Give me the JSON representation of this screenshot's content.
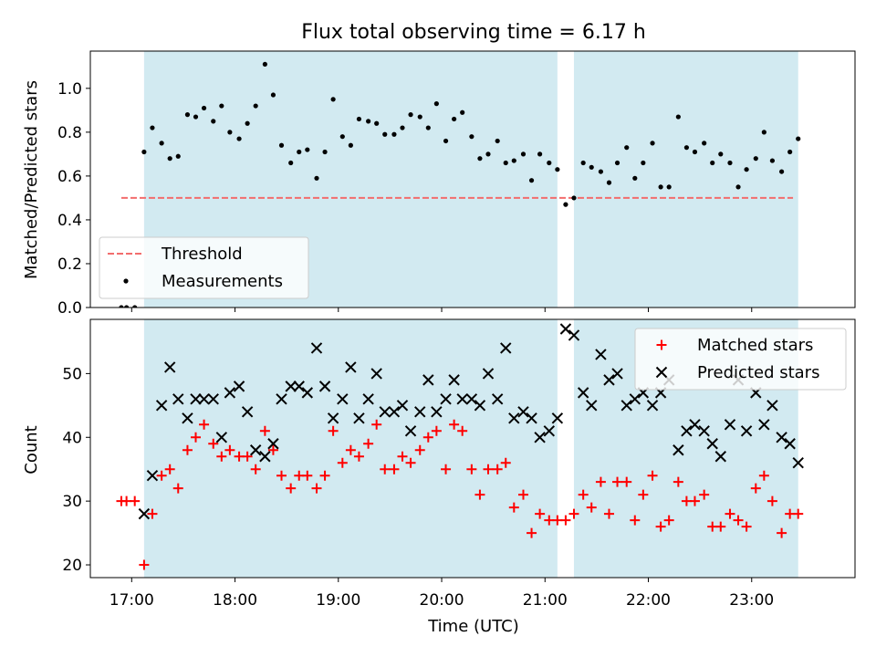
{
  "chart_data": {
    "title": "Flux total observing time = 6.17 h",
    "xlabel": "Time (UTC)",
    "xlim": [
      16.6,
      24.0
    ],
    "xticks": [
      17,
      18,
      19,
      20,
      21,
      22,
      23
    ],
    "xtick_labels": [
      "17:00",
      "18:00",
      "19:00",
      "20:00",
      "21:00",
      "22:00",
      "23:00"
    ],
    "shaded_intervals": [
      [
        17.12,
        21.12
      ],
      [
        21.28,
        23.45
      ]
    ],
    "shade_color": "#add8e6",
    "panels": [
      {
        "type": "scatter",
        "ylabel": "Matched/Predicted stars",
        "ylim": [
          0.0,
          1.17
        ],
        "yticks": [
          0.0,
          0.2,
          0.4,
          0.6,
          0.8,
          1.0
        ],
        "ytick_labels": [
          "0.0",
          "0.2",
          "0.4",
          "0.6",
          "0.8",
          "1.0"
        ],
        "legend_position": "lower-left",
        "threshold": {
          "name": "Threshold",
          "value": 0.5,
          "x_range": [
            16.9,
            23.4
          ],
          "color": "#f26d6d",
          "style": "dashed"
        },
        "series": [
          {
            "name": "Measurements",
            "marker": "dot",
            "color": "#000000",
            "points": [
              [
                16.9,
                0.0
              ],
              [
                16.95,
                0.0
              ],
              [
                17.03,
                0.0
              ],
              [
                17.12,
                0.71
              ],
              [
                17.2,
                0.82
              ],
              [
                17.29,
                0.75
              ],
              [
                17.37,
                0.68
              ],
              [
                17.45,
                0.69
              ],
              [
                17.54,
                0.88
              ],
              [
                17.62,
                0.87
              ],
              [
                17.7,
                0.91
              ],
              [
                17.79,
                0.85
              ],
              [
                17.87,
                0.92
              ],
              [
                17.95,
                0.8
              ],
              [
                18.04,
                0.77
              ],
              [
                18.12,
                0.84
              ],
              [
                18.2,
                0.92
              ],
              [
                18.29,
                1.11
              ],
              [
                18.37,
                0.97
              ],
              [
                18.45,
                0.74
              ],
              [
                18.54,
                0.66
              ],
              [
                18.62,
                0.71
              ],
              [
                18.7,
                0.72
              ],
              [
                18.79,
                0.59
              ],
              [
                18.87,
                0.71
              ],
              [
                18.95,
                0.95
              ],
              [
                19.04,
                0.78
              ],
              [
                19.12,
                0.74
              ],
              [
                19.2,
                0.86
              ],
              [
                19.29,
                0.85
              ],
              [
                19.37,
                0.84
              ],
              [
                19.45,
                0.79
              ],
              [
                19.54,
                0.79
              ],
              [
                19.62,
                0.82
              ],
              [
                19.7,
                0.88
              ],
              [
                19.79,
                0.87
              ],
              [
                19.87,
                0.82
              ],
              [
                19.95,
                0.93
              ],
              [
                20.04,
                0.76
              ],
              [
                20.12,
                0.86
              ],
              [
                20.2,
                0.89
              ],
              [
                20.29,
                0.78
              ],
              [
                20.37,
                0.68
              ],
              [
                20.45,
                0.7
              ],
              [
                20.54,
                0.76
              ],
              [
                20.62,
                0.66
              ],
              [
                20.7,
                0.67
              ],
              [
                20.79,
                0.7
              ],
              [
                20.87,
                0.58
              ],
              [
                20.95,
                0.7
              ],
              [
                21.04,
                0.66
              ],
              [
                21.12,
                0.63
              ],
              [
                21.2,
                0.47
              ],
              [
                21.28,
                0.5
              ],
              [
                21.37,
                0.66
              ],
              [
                21.45,
                0.64
              ],
              [
                21.54,
                0.62
              ],
              [
                21.62,
                0.57
              ],
              [
                21.7,
                0.66
              ],
              [
                21.79,
                0.73
              ],
              [
                21.87,
                0.59
              ],
              [
                21.95,
                0.66
              ],
              [
                22.04,
                0.75
              ],
              [
                22.12,
                0.55
              ],
              [
                22.2,
                0.55
              ],
              [
                22.29,
                0.87
              ],
              [
                22.37,
                0.73
              ],
              [
                22.45,
                0.71
              ],
              [
                22.54,
                0.75
              ],
              [
                22.62,
                0.66
              ],
              [
                22.7,
                0.7
              ],
              [
                22.79,
                0.66
              ],
              [
                22.87,
                0.55
              ],
              [
                22.95,
                0.63
              ],
              [
                23.04,
                0.68
              ],
              [
                23.12,
                0.8
              ],
              [
                23.2,
                0.67
              ],
              [
                23.29,
                0.62
              ],
              [
                23.37,
                0.71
              ],
              [
                23.45,
                0.77
              ]
            ]
          }
        ]
      },
      {
        "type": "scatter",
        "ylabel": "Count",
        "ylim": [
          18.0,
          58.5
        ],
        "yticks": [
          20,
          30,
          40,
          50
        ],
        "ytick_labels": [
          "20",
          "30",
          "40",
          "50"
        ],
        "legend_position": "upper-right",
        "series": [
          {
            "name": "Matched stars",
            "marker": "plus",
            "color": "#ff0000",
            "points": [
              [
                16.9,
                30
              ],
              [
                16.95,
                30
              ],
              [
                17.03,
                30
              ],
              [
                17.12,
                20
              ],
              [
                17.2,
                28
              ],
              [
                17.29,
                34
              ],
              [
                17.37,
                35
              ],
              [
                17.45,
                32
              ],
              [
                17.54,
                38
              ],
              [
                17.62,
                40
              ],
              [
                17.7,
                42
              ],
              [
                17.79,
                39
              ],
              [
                17.87,
                37
              ],
              [
                17.95,
                38
              ],
              [
                18.04,
                37
              ],
              [
                18.12,
                37
              ],
              [
                18.2,
                35
              ],
              [
                18.29,
                41
              ],
              [
                18.37,
                38
              ],
              [
                18.45,
                34
              ],
              [
                18.54,
                32
              ],
              [
                18.62,
                34
              ],
              [
                18.7,
                34
              ],
              [
                18.79,
                32
              ],
              [
                18.87,
                34
              ],
              [
                18.95,
                41
              ],
              [
                19.04,
                36
              ],
              [
                19.12,
                38
              ],
              [
                19.2,
                37
              ],
              [
                19.29,
                39
              ],
              [
                19.37,
                42
              ],
              [
                19.45,
                35
              ],
              [
                19.54,
                35
              ],
              [
                19.62,
                37
              ],
              [
                19.7,
                36
              ],
              [
                19.79,
                38
              ],
              [
                19.87,
                40
              ],
              [
                19.95,
                41
              ],
              [
                20.04,
                35
              ],
              [
                20.12,
                42
              ],
              [
                20.2,
                41
              ],
              [
                20.29,
                35
              ],
              [
                20.37,
                31
              ],
              [
                20.45,
                35
              ],
              [
                20.54,
                35
              ],
              [
                20.62,
                36
              ],
              [
                20.7,
                29
              ],
              [
                20.79,
                31
              ],
              [
                20.87,
                25
              ],
              [
                20.95,
                28
              ],
              [
                21.04,
                27
              ],
              [
                21.12,
                27
              ],
              [
                21.2,
                27
              ],
              [
                21.28,
                28
              ],
              [
                21.37,
                31
              ],
              [
                21.45,
                29
              ],
              [
                21.54,
                33
              ],
              [
                21.62,
                28
              ],
              [
                21.7,
                33
              ],
              [
                21.79,
                33
              ],
              [
                21.87,
                27
              ],
              [
                21.95,
                31
              ],
              [
                22.04,
                34
              ],
              [
                22.12,
                26
              ],
              [
                22.2,
                27
              ],
              [
                22.29,
                33
              ],
              [
                22.37,
                30
              ],
              [
                22.45,
                30
              ],
              [
                22.54,
                31
              ],
              [
                22.62,
                26
              ],
              [
                22.7,
                26
              ],
              [
                22.79,
                28
              ],
              [
                22.87,
                27
              ],
              [
                22.95,
                26
              ],
              [
                23.04,
                32
              ],
              [
                23.12,
                34
              ],
              [
                23.2,
                30
              ],
              [
                23.29,
                25
              ],
              [
                23.37,
                28
              ],
              [
                23.45,
                28
              ]
            ]
          },
          {
            "name": "Predicted stars",
            "marker": "x",
            "color": "#000000",
            "points": [
              [
                17.12,
                28
              ],
              [
                17.2,
                34
              ],
              [
                17.29,
                45
              ],
              [
                17.37,
                51
              ],
              [
                17.45,
                46
              ],
              [
                17.54,
                43
              ],
              [
                17.62,
                46
              ],
              [
                17.7,
                46
              ],
              [
                17.79,
                46
              ],
              [
                17.87,
                40
              ],
              [
                17.95,
                47
              ],
              [
                18.04,
                48
              ],
              [
                18.12,
                44
              ],
              [
                18.2,
                38
              ],
              [
                18.29,
                37
              ],
              [
                18.37,
                39
              ],
              [
                18.45,
                46
              ],
              [
                18.54,
                48
              ],
              [
                18.62,
                48
              ],
              [
                18.7,
                47
              ],
              [
                18.79,
                54
              ],
              [
                18.87,
                48
              ],
              [
                18.95,
                43
              ],
              [
                19.04,
                46
              ],
              [
                19.12,
                51
              ],
              [
                19.2,
                43
              ],
              [
                19.29,
                46
              ],
              [
                19.37,
                50
              ],
              [
                19.45,
                44
              ],
              [
                19.54,
                44
              ],
              [
                19.62,
                45
              ],
              [
                19.7,
                41
              ],
              [
                19.79,
                44
              ],
              [
                19.87,
                49
              ],
              [
                19.95,
                44
              ],
              [
                20.04,
                46
              ],
              [
                20.12,
                49
              ],
              [
                20.2,
                46
              ],
              [
                20.29,
                46
              ],
              [
                20.37,
                45
              ],
              [
                20.45,
                50
              ],
              [
                20.54,
                46
              ],
              [
                20.62,
                54
              ],
              [
                20.7,
                43
              ],
              [
                20.79,
                44
              ],
              [
                20.87,
                43
              ],
              [
                20.95,
                40
              ],
              [
                21.04,
                41
              ],
              [
                21.12,
                43
              ],
              [
                21.2,
                57
              ],
              [
                21.28,
                56
              ],
              [
                21.37,
                47
              ],
              [
                21.45,
                45
              ],
              [
                21.54,
                53
              ],
              [
                21.62,
                49
              ],
              [
                21.7,
                50
              ],
              [
                21.79,
                45
              ],
              [
                21.87,
                46
              ],
              [
                21.95,
                47
              ],
              [
                22.04,
                45
              ],
              [
                22.12,
                47
              ],
              [
                22.2,
                49
              ],
              [
                22.29,
                38
              ],
              [
                22.37,
                41
              ],
              [
                22.45,
                42
              ],
              [
                22.54,
                41
              ],
              [
                22.62,
                39
              ],
              [
                22.7,
                37
              ],
              [
                22.79,
                42
              ],
              [
                22.87,
                49
              ],
              [
                22.95,
                41
              ],
              [
                23.04,
                47
              ],
              [
                23.12,
                42
              ],
              [
                23.2,
                45
              ],
              [
                23.29,
                40
              ],
              [
                23.37,
                39
              ],
              [
                23.45,
                36
              ]
            ]
          }
        ]
      }
    ]
  }
}
